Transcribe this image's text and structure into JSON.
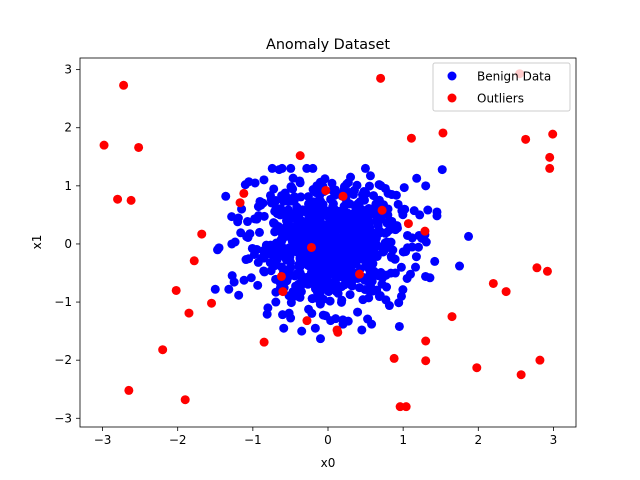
{
  "chart_data": {
    "type": "scatter",
    "title": "Anomaly Dataset",
    "xlabel": "x0",
    "ylabel": "x1",
    "xlim": [
      -3.3,
      3.3
    ],
    "ylim": [
      -3.15,
      3.2
    ],
    "xticks": [
      -3,
      -2,
      -1,
      0,
      1,
      2,
      3
    ],
    "yticks": [
      -3,
      -2,
      -1,
      0,
      1,
      2,
      3
    ],
    "grid": false,
    "legend_position": "top-right",
    "series": [
      {
        "name": "Benign Data",
        "color": "#0000ff",
        "cluster": {
          "center": [
            0.0,
            0.0
          ],
          "std": [
            0.5,
            0.5
          ],
          "count": 900
        },
        "points": [
          [
            1.87,
            0.13
          ],
          [
            1.75,
            -0.38
          ],
          [
            1.52,
            1.28
          ],
          [
            1.45,
            0.55
          ],
          [
            1.42,
            -0.3
          ],
          [
            1.3,
            1.0
          ],
          [
            1.18,
            1.13
          ],
          [
            -1.5,
            -0.78
          ],
          [
            -1.32,
            -0.78
          ],
          [
            -1.28,
            0.0
          ],
          [
            -1.47,
            -0.1
          ],
          [
            -1.1,
            1.02
          ],
          [
            -0.97,
            1.05
          ],
          [
            -0.35,
            -1.5
          ],
          [
            -0.1,
            -1.63
          ],
          [
            0.45,
            -1.48
          ],
          [
            0.58,
            -1.38
          ],
          [
            0.95,
            -1.42
          ],
          [
            -0.65,
            1.28
          ],
          [
            0.3,
            1.15
          ],
          [
            0.85,
            0.85
          ],
          [
            1.22,
            0.5
          ],
          [
            -1.15,
            0.6
          ],
          [
            -0.8,
            -1.1
          ],
          [
            0.2,
            -1.38
          ]
        ]
      },
      {
        "name": "Outliers",
        "color": "#ff0000",
        "points": [
          [
            -2.72,
            2.73
          ],
          [
            -2.98,
            1.7
          ],
          [
            -2.8,
            0.77
          ],
          [
            -2.62,
            0.75
          ],
          [
            -2.52,
            1.66
          ],
          [
            -1.68,
            0.17
          ],
          [
            -1.78,
            -0.29
          ],
          [
            -2.02,
            -0.8
          ],
          [
            -1.85,
            -1.19
          ],
          [
            -1.55,
            -1.02
          ],
          [
            -2.2,
            -1.82
          ],
          [
            -2.65,
            -2.52
          ],
          [
            -1.9,
            -2.68
          ],
          [
            -1.17,
            0.71
          ],
          [
            -1.12,
            0.87
          ],
          [
            -0.85,
            -1.69
          ],
          [
            -0.62,
            -0.56
          ],
          [
            -0.6,
            -0.82
          ],
          [
            -0.37,
            1.52
          ],
          [
            -0.22,
            -0.06
          ],
          [
            -0.28,
            -1.32
          ],
          [
            -0.03,
            0.92
          ],
          [
            0.12,
            -1.48
          ],
          [
            0.13,
            -1.52
          ],
          [
            0.2,
            0.82
          ],
          [
            0.42,
            -0.52
          ],
          [
            0.7,
            2.85
          ],
          [
            0.72,
            0.58
          ],
          [
            0.88,
            -1.97
          ],
          [
            0.96,
            -2.8
          ],
          [
            1.04,
            -2.8
          ],
          [
            1.07,
            0.35
          ],
          [
            1.11,
            1.82
          ],
          [
            1.29,
            0.22
          ],
          [
            1.3,
            -1.67
          ],
          [
            1.3,
            -2.01
          ],
          [
            1.53,
            1.91
          ],
          [
            1.65,
            -1.25
          ],
          [
            1.98,
            -2.13
          ],
          [
            2.2,
            -0.68
          ],
          [
            2.37,
            -0.82
          ],
          [
            2.55,
            2.93
          ],
          [
            2.57,
            -2.25
          ],
          [
            2.63,
            1.8
          ],
          [
            2.78,
            -0.41
          ],
          [
            2.82,
            -2.0
          ],
          [
            2.92,
            -0.47
          ],
          [
            2.95,
            1.3
          ],
          [
            2.95,
            1.49
          ],
          [
            2.99,
            1.89
          ]
        ]
      }
    ]
  }
}
